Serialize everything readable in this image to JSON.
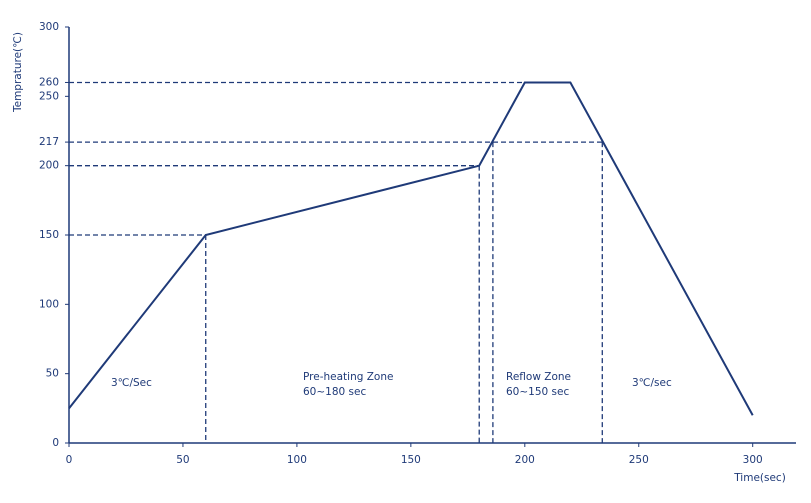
{
  "chart_data": {
    "type": "line",
    "y_label": "Temprature(℃)",
    "x_label": "Time(sec)",
    "x": [
      0,
      60,
      180,
      200,
      220,
      300
    ],
    "values": [
      25,
      150,
      200,
      260,
      260,
      20
    ],
    "color": "#1f3a78",
    "xlim": [
      0,
      319
    ],
    "ylim": [
      0,
      300
    ],
    "xticks": [
      0,
      50,
      100,
      150,
      200,
      250,
      300
    ],
    "yticks": [
      0,
      50,
      100,
      150,
      200,
      217,
      250,
      260,
      300
    ],
    "dashed_lines": [
      {
        "x": [
          0,
          200
        ],
        "y": [
          260,
          260
        ]
      },
      {
        "x": [
          0,
          234
        ],
        "y": [
          217,
          217
        ]
      },
      {
        "x": [
          0,
          180
        ],
        "y": [
          200,
          200
        ]
      },
      {
        "x": [
          0,
          60
        ],
        "y": [
          150,
          150
        ]
      },
      {
        "x": [
          60,
          60
        ],
        "y": [
          150,
          0
        ]
      },
      {
        "x": [
          180,
          180
        ],
        "y": [
          200,
          0
        ]
      },
      {
        "x": [
          186,
          186
        ],
        "y": [
          217,
          0
        ]
      },
      {
        "x": [
          234,
          234
        ],
        "y": [
          217,
          0
        ]
      }
    ],
    "annotations": [
      "3℃/Sec",
      "Pre-heating Zone",
      "60~180 sec",
      "Reflow Zone",
      "60~150 sec",
      "3℃/sec"
    ]
  }
}
